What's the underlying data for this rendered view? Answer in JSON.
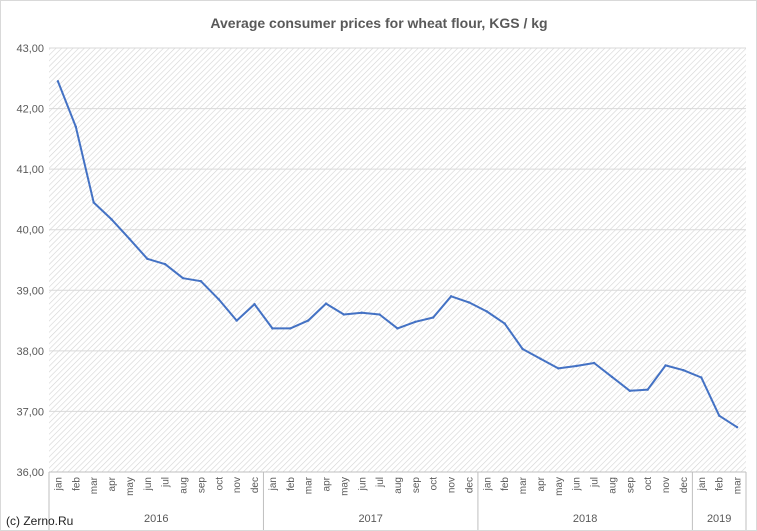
{
  "chart_data": {
    "type": "line",
    "title": "Average consumer prices for wheat flour, KGS / kg",
    "xlabel": "",
    "ylabel": "",
    "ylim": [
      36,
      43
    ],
    "yticks": [
      "36,00",
      "37,00",
      "38,00",
      "39,00",
      "40,00",
      "41,00",
      "42,00",
      "43,00"
    ],
    "grid": "hatched plot area",
    "legend": "none",
    "x": [
      "jan",
      "feb",
      "mar",
      "apr",
      "may",
      "jun",
      "jul",
      "aug",
      "sep",
      "oct",
      "nov",
      "dec",
      "jan",
      "feb",
      "mar",
      "apr",
      "may",
      "jun",
      "jul",
      "aug",
      "sep",
      "oct",
      "nov",
      "dec",
      "jan",
      "feb",
      "mar",
      "apr",
      "may",
      "jun",
      "jul",
      "aug",
      "sep",
      "oct",
      "nov",
      "dec",
      "jan",
      "feb",
      "mar"
    ],
    "year_groups": [
      {
        "label": "2016",
        "count": 12
      },
      {
        "label": "2017",
        "count": 12
      },
      {
        "label": "2018",
        "count": 12
      },
      {
        "label": "2019",
        "count": 3
      }
    ],
    "series": [
      {
        "color": "#4472c4",
        "values": [
          42.45,
          41.7,
          40.45,
          40.17,
          39.85,
          39.52,
          39.43,
          39.2,
          39.15,
          38.85,
          38.5,
          38.77,
          38.37,
          38.37,
          38.5,
          38.78,
          38.6,
          38.63,
          38.6,
          38.37,
          38.48,
          38.55,
          38.9,
          38.8,
          38.65,
          38.45,
          38.03,
          37.87,
          37.71,
          37.75,
          37.8,
          37.57,
          37.34,
          37.36,
          37.76,
          37.68,
          37.56,
          36.93,
          36.74
        ]
      }
    ]
  },
  "watermark": "(c) Zerno.Ru"
}
